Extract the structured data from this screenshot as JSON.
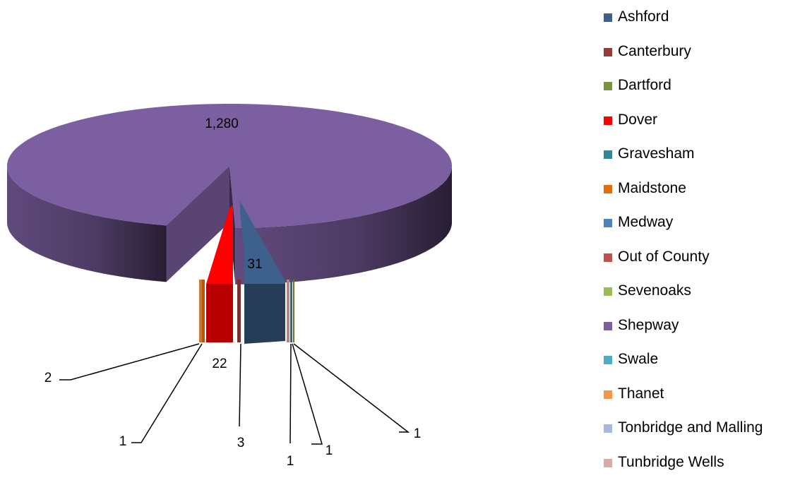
{
  "chart_data": {
    "type": "pie",
    "categories": [
      "Ashford",
      "Canterbury",
      "Dartford",
      "Dover",
      "Gravesham",
      "Maidstone",
      "Medway",
      "Out of County",
      "Sevenoaks",
      "Shepway",
      "Swale",
      "Thanet",
      "Tonbridge and Malling",
      "Tunbridge Wells"
    ],
    "values": [
      31,
      3,
      1,
      22,
      1,
      1,
      0,
      0,
      0,
      1280,
      0,
      2,
      0,
      1
    ],
    "data_labels": [
      "31",
      "3",
      "1",
      "22",
      "1",
      "1",
      "",
      "",
      "",
      "1,280",
      "",
      "2",
      "",
      "1"
    ],
    "colors": [
      "#3E608D",
      "#953C39",
      "#77933C",
      "#FF0000",
      "#31859C",
      "#E46C0A",
      "#4F81BD",
      "#C0504D",
      "#9BBB59",
      "#7C5FA0",
      "#4BACC6",
      "#F79646",
      "#A7B9D8",
      "#D9A9A8"
    ],
    "legend_position": "right",
    "three_d": true,
    "exploded": true
  }
}
